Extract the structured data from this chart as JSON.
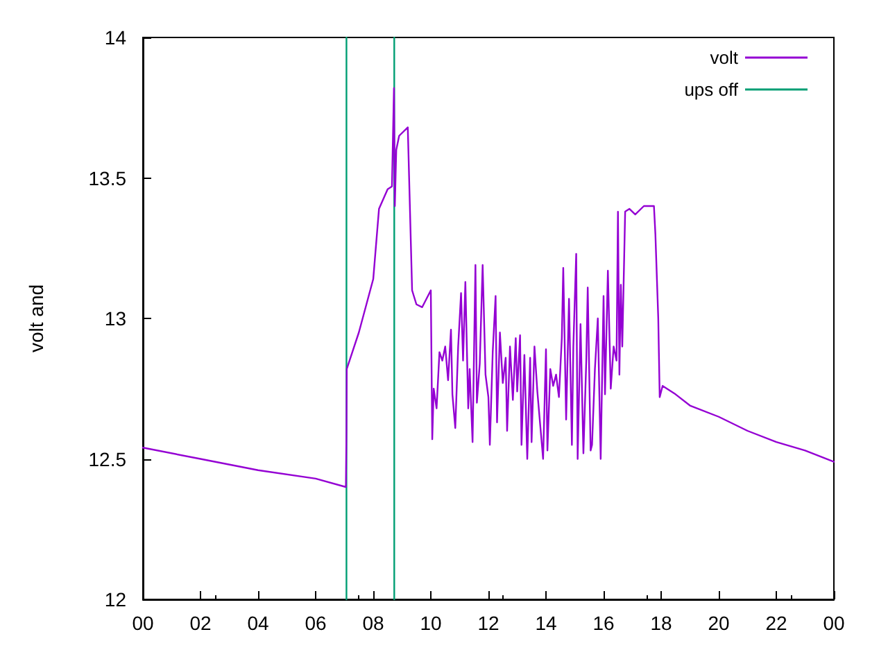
{
  "chart_data": {
    "type": "line",
    "ylabel": "volt and",
    "xlim": [
      0,
      24
    ],
    "ylim": [
      12,
      14
    ],
    "xticks": [
      {
        "value": 0,
        "label": "00"
      },
      {
        "value": 2,
        "label": "02"
      },
      {
        "value": 4,
        "label": "04"
      },
      {
        "value": 6,
        "label": "06"
      },
      {
        "value": 8,
        "label": "08"
      },
      {
        "value": 10,
        "label": "10"
      },
      {
        "value": 12,
        "label": "12"
      },
      {
        "value": 14,
        "label": "14"
      },
      {
        "value": 16,
        "label": "16"
      },
      {
        "value": 18,
        "label": "18"
      },
      {
        "value": 20,
        "label": "20"
      },
      {
        "value": 22,
        "label": "22"
      },
      {
        "value": 24,
        "label": "00"
      }
    ],
    "yticks": [
      12,
      12.5,
      13,
      13.5,
      14
    ],
    "grid": false,
    "legend": "top right",
    "marker": "none",
    "line_style": "solid",
    "series": [
      {
        "name": "volt",
        "color": "#9400d3",
        "x": [
          0,
          2,
          4,
          6,
          7.05,
          7.07,
          7.08,
          7.5,
          8.0,
          8.2,
          8.5,
          8.65,
          8.72,
          8.75,
          8.8,
          8.9,
          9.2,
          9.35,
          9.5,
          9.7,
          10.0,
          10.05,
          10.1,
          10.2,
          10.3,
          10.4,
          10.5,
          10.6,
          10.7,
          10.75,
          10.85,
          10.95,
          11.05,
          11.12,
          11.2,
          11.3,
          11.35,
          11.45,
          11.55,
          11.6,
          11.7,
          11.8,
          11.9,
          12.0,
          12.05,
          12.15,
          12.25,
          12.3,
          12.4,
          12.5,
          12.6,
          12.65,
          12.75,
          12.85,
          12.95,
          13.0,
          13.1,
          13.15,
          13.25,
          13.35,
          13.45,
          13.5,
          13.6,
          13.7,
          13.8,
          13.9,
          14.0,
          14.05,
          14.15,
          14.25,
          14.35,
          14.45,
          14.55,
          14.6,
          14.7,
          14.8,
          14.9,
          14.95,
          15.05,
          15.1,
          15.2,
          15.3,
          15.4,
          15.45,
          15.55,
          15.6,
          15.7,
          15.8,
          15.9,
          16.0,
          16.05,
          16.15,
          16.25,
          16.35,
          16.45,
          16.5,
          16.55,
          16.6,
          16.65,
          16.75,
          16.9,
          17.1,
          17.4,
          17.75,
          17.8,
          17.9,
          17.95,
          18.05,
          18.5,
          19,
          20,
          21,
          22,
          23,
          24
        ],
        "values": [
          12.54,
          12.5,
          12.46,
          12.43,
          12.4,
          12.6,
          12.82,
          12.95,
          13.14,
          13.39,
          13.46,
          13.47,
          13.82,
          13.4,
          13.6,
          13.65,
          13.68,
          13.1,
          13.05,
          13.04,
          13.1,
          12.57,
          12.75,
          12.68,
          12.88,
          12.85,
          12.9,
          12.78,
          12.96,
          12.73,
          12.61,
          12.9,
          13.09,
          12.85,
          13.13,
          12.68,
          12.82,
          12.56,
          13.19,
          12.7,
          12.84,
          13.19,
          12.8,
          12.72,
          12.55,
          12.88,
          13.08,
          12.63,
          12.95,
          12.77,
          12.86,
          12.6,
          12.9,
          12.71,
          12.93,
          12.74,
          12.94,
          12.55,
          12.87,
          12.5,
          12.86,
          12.56,
          12.9,
          12.74,
          12.62,
          12.5,
          12.89,
          12.53,
          12.82,
          12.76,
          12.8,
          12.72,
          12.93,
          13.18,
          12.64,
          13.07,
          12.55,
          12.9,
          13.23,
          12.5,
          12.98,
          12.52,
          12.85,
          13.11,
          12.53,
          12.55,
          12.82,
          13.0,
          12.5,
          13.08,
          12.73,
          13.17,
          12.75,
          12.9,
          12.85,
          13.38,
          12.8,
          13.12,
          12.9,
          13.38,
          13.39,
          13.37,
          13.4,
          13.4,
          13.3,
          13.0,
          12.72,
          12.76,
          12.73,
          12.69,
          12.65,
          12.6,
          12.56,
          12.53,
          12.49
        ]
      },
      {
        "name": "ups off",
        "color": "#009e73",
        "x": [
          7.07,
          7.07,
          7.9,
          8.73,
          8.73
        ],
        "values": [
          12,
          14,
          null,
          14,
          12
        ]
      }
    ]
  }
}
